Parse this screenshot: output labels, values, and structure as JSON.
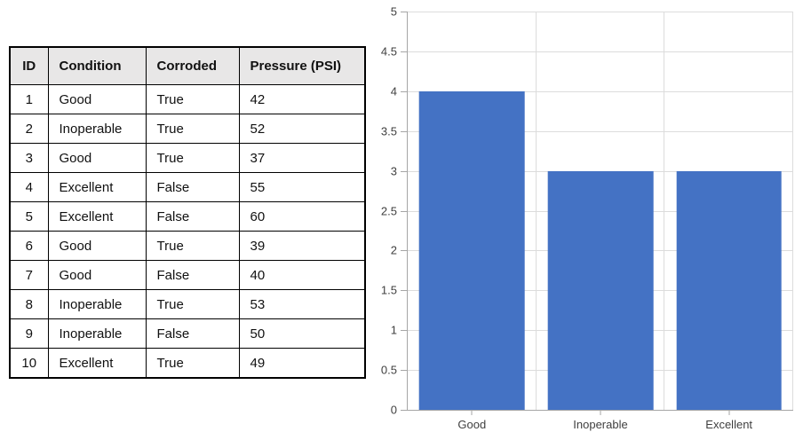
{
  "table": {
    "headers": [
      "ID",
      "Condition",
      "Corroded",
      "Pressure (PSI)"
    ],
    "rows": [
      [
        "1",
        "Good",
        "True",
        "42"
      ],
      [
        "2",
        "Inoperable",
        "True",
        "52"
      ],
      [
        "3",
        "Good",
        "True",
        "37"
      ],
      [
        "4",
        "Excellent",
        "False",
        "55"
      ],
      [
        "5",
        "Excellent",
        "False",
        "60"
      ],
      [
        "6",
        "Good",
        "True",
        "39"
      ],
      [
        "7",
        "Good",
        "False",
        "40"
      ],
      [
        "8",
        "Inoperable",
        "True",
        "53"
      ],
      [
        "9",
        "Inoperable",
        "False",
        "50"
      ],
      [
        "10",
        "Excellent",
        "True",
        "49"
      ]
    ],
    "header_bg": "#E8E7E7",
    "border_color": "#000000"
  },
  "chart_data": {
    "type": "bar",
    "categories": [
      "Good",
      "Inoperable",
      "Excellent"
    ],
    "values": [
      4,
      3,
      3
    ],
    "title": "",
    "xlabel": "",
    "ylabel": "",
    "ylim": [
      0,
      5
    ],
    "ytick_step": 0.5,
    "ytick_labels": [
      "0",
      "0.5",
      "1",
      "1.5",
      "2",
      "2.5",
      "3",
      "3.5",
      "4",
      "4.5",
      "5"
    ],
    "grid": true,
    "legend": "none",
    "bar_color": "#4472C4",
    "gridline_color": "#DCDCDC",
    "axis_color": "#A6A6A6",
    "tick_label_color": "#3F3F3F"
  }
}
